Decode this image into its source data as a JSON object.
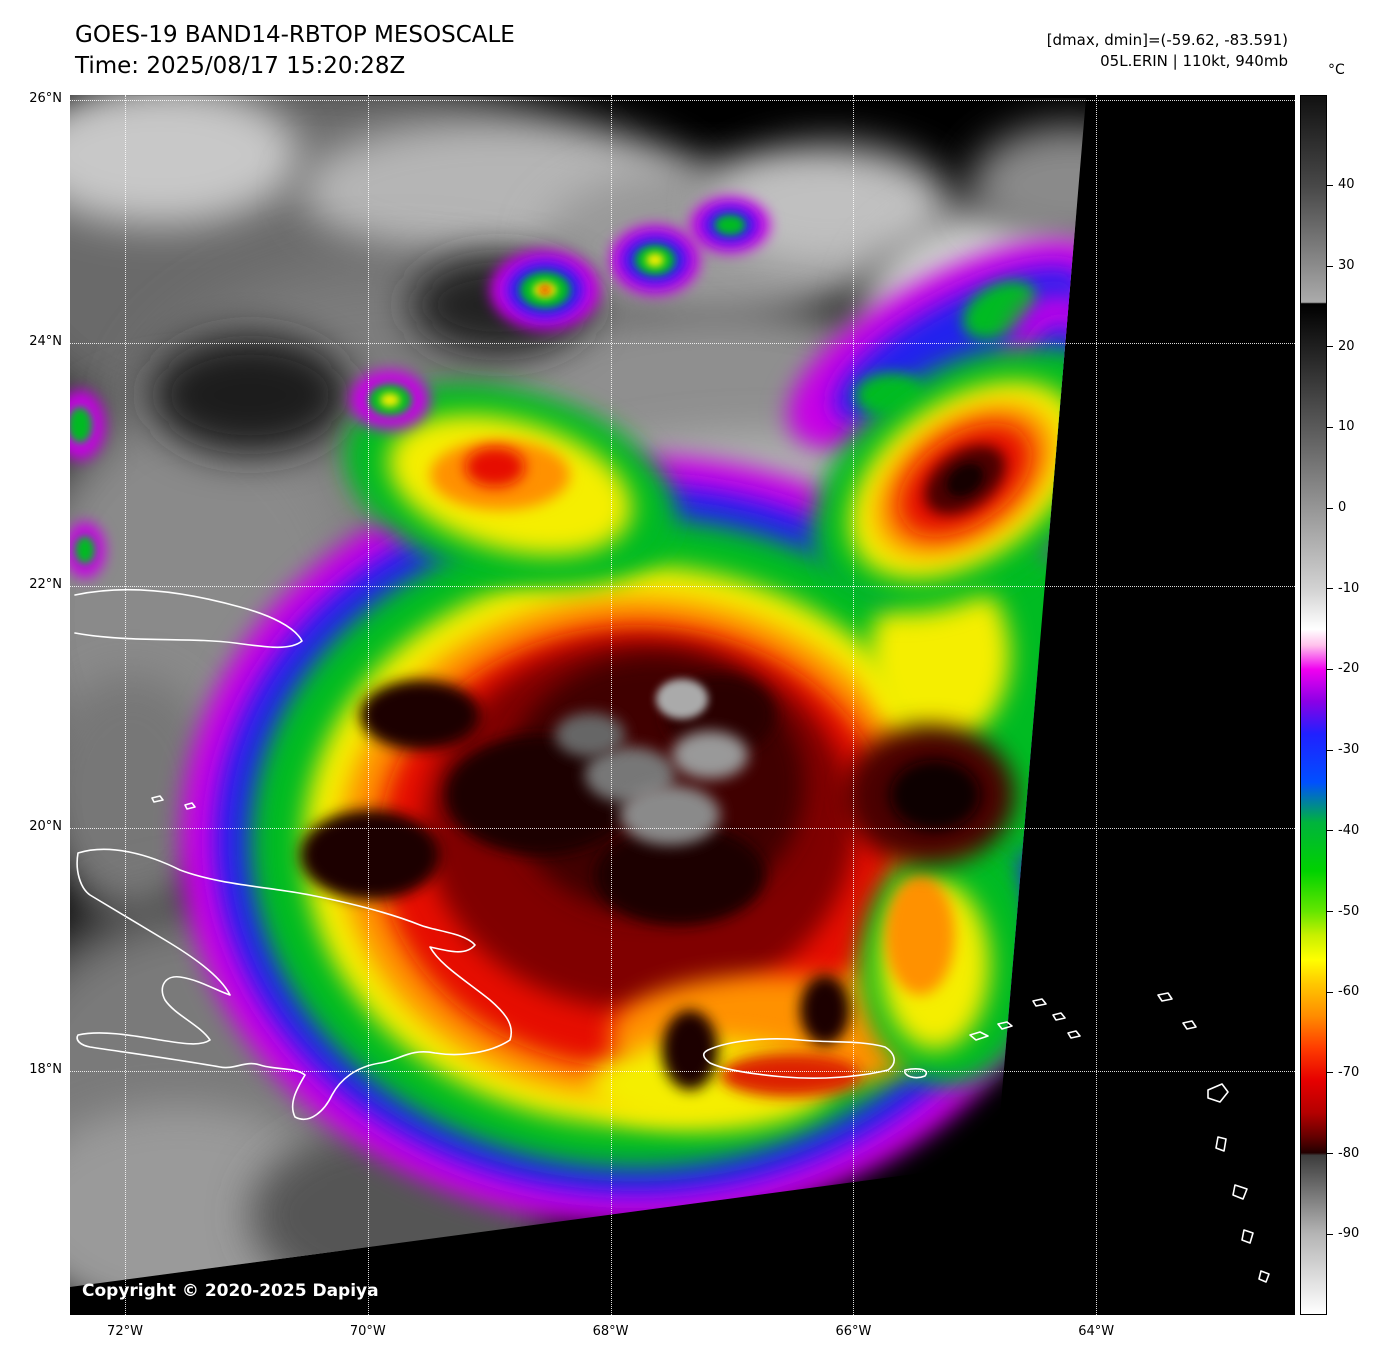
{
  "header": {
    "title": "GOES-19 BAND14-RBTOP MESOSCALE",
    "time_line": "Time: 2025/08/17 15:20:28Z"
  },
  "info": {
    "dmax_dmin": "[dmax, dmin]=(-59.62, -83.591)",
    "storm": "05L.ERIN | 110kt, 940mb"
  },
  "map": {
    "copyright": "Copyright © 2020-2025 Dapiya",
    "lat_ticks": [
      {
        "label": "26°N",
        "deg": 26
      },
      {
        "label": "24°N",
        "deg": 24
      },
      {
        "label": "22°N",
        "deg": 22
      },
      {
        "label": "20°N",
        "deg": 20
      },
      {
        "label": "18°N",
        "deg": 18
      }
    ],
    "lon_ticks": [
      {
        "label": "72°W",
        "deg": 72
      },
      {
        "label": "70°W",
        "deg": 70
      },
      {
        "label": "68°W",
        "deg": 68
      },
      {
        "label": "66°W",
        "deg": 66
      },
      {
        "label": "64°W",
        "deg": 64
      }
    ]
  },
  "colorbar": {
    "unit": "°C",
    "scale_top_value": 51.2,
    "scale_bottom_value": -100,
    "ticks": [
      {
        "label": "40",
        "value": 40
      },
      {
        "label": "30",
        "value": 30
      },
      {
        "label": "20",
        "value": 20
      },
      {
        "label": "10",
        "value": 10
      },
      {
        "label": "0",
        "value": 0
      },
      {
        "label": "-10",
        "value": -10
      },
      {
        "label": "-20",
        "value": -20
      },
      {
        "label": "-30",
        "value": -30
      },
      {
        "label": "-40",
        "value": -40
      },
      {
        "label": "-50",
        "value": -50
      },
      {
        "label": "-60",
        "value": -60
      },
      {
        "label": "-70",
        "value": -70
      },
      {
        "label": "-80",
        "value": -80
      },
      {
        "label": "-90",
        "value": -90
      }
    ],
    "stops": [
      {
        "value": 51.2,
        "color": "#111111"
      },
      {
        "value": 40,
        "color": "#484848"
      },
      {
        "value": 30,
        "color": "#8c8c8c"
      },
      {
        "value": 25.6,
        "color": "#ababab"
      },
      {
        "value": 25.4,
        "color": "#000000"
      },
      {
        "value": 10,
        "color": "#5a5a5a"
      },
      {
        "value": 0,
        "color": "#969696"
      },
      {
        "value": -10,
        "color": "#d2d2d2"
      },
      {
        "value": -15,
        "color": "#ffffff"
      },
      {
        "value": -17,
        "color": "#ffc0ec"
      },
      {
        "value": -20,
        "color": "#f000f0"
      },
      {
        "value": -24,
        "color": "#8a00e6"
      },
      {
        "value": -28,
        "color": "#2020ff"
      },
      {
        "value": -34,
        "color": "#0050ff"
      },
      {
        "value": -39,
        "color": "#00b43c"
      },
      {
        "value": -45,
        "color": "#00d200"
      },
      {
        "value": -50,
        "color": "#64e600"
      },
      {
        "value": -53,
        "color": "#c8f000"
      },
      {
        "value": -56,
        "color": "#ffff00"
      },
      {
        "value": -59,
        "color": "#ffc800"
      },
      {
        "value": -63,
        "color": "#ff8c00"
      },
      {
        "value": -67,
        "color": "#ff3c00"
      },
      {
        "value": -71,
        "color": "#e60000"
      },
      {
        "value": -75,
        "color": "#b40000"
      },
      {
        "value": -78,
        "color": "#640000"
      },
      {
        "value": -80,
        "color": "#230000"
      },
      {
        "value": -80.3,
        "color": "#3c3c3c"
      },
      {
        "value": -90,
        "color": "#b4b4b4"
      },
      {
        "value": -100,
        "color": "#ffffff"
      }
    ]
  },
  "palette": {
    "page_background": "#ffffff",
    "space_background": "#000000",
    "grid": "#ffffff",
    "coastline": "#ffffff",
    "fringe_magenta": "#c800e6",
    "band_blue": "#2222ee",
    "band_green": "#00bb22",
    "band_yellow": "#f5ee00",
    "band_orange": "#ff9100",
    "band_red": "#e61000",
    "core_dark_red": "#800000"
  }
}
